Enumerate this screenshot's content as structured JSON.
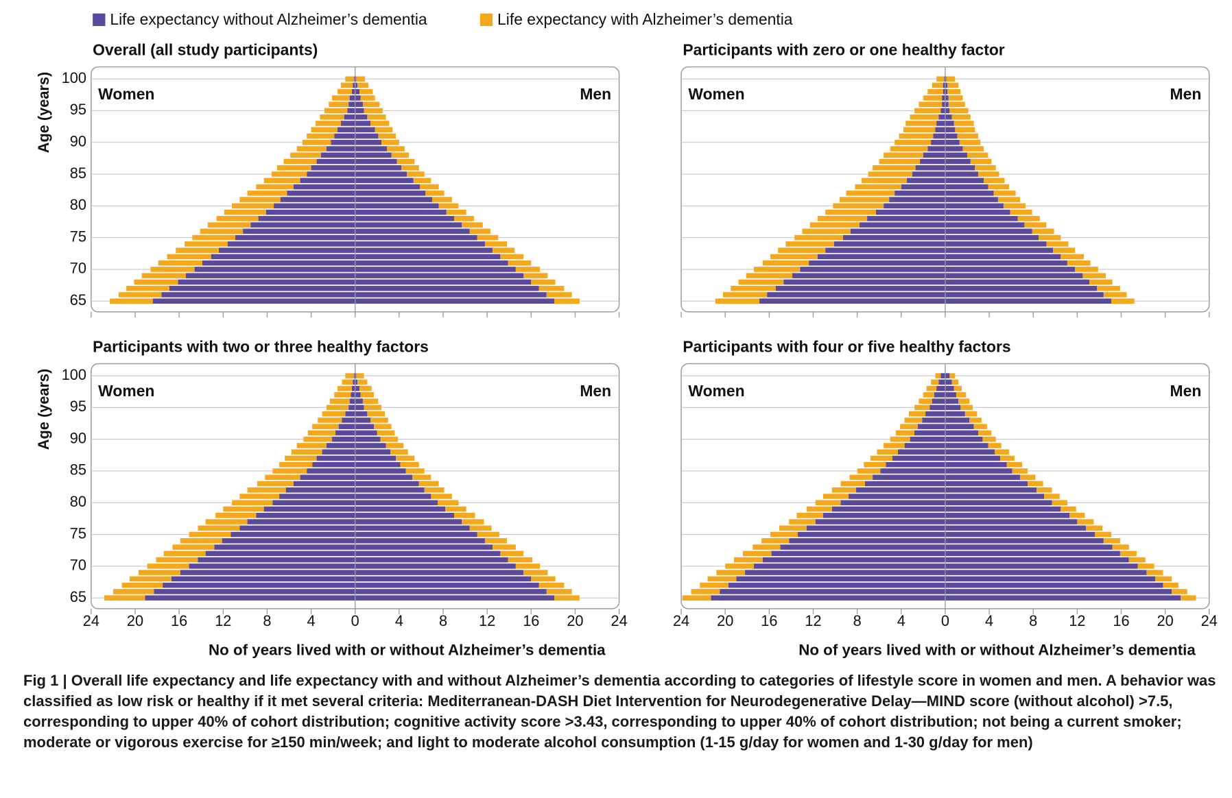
{
  "legend": [
    {
      "name": "Life expectancy without Alzheimer’s dementia",
      "color": "#5b4a9b"
    },
    {
      "name": "Life expectancy with Alzheimer’s dementia",
      "color": "#f5a81c"
    }
  ],
  "chart_data": [
    {
      "type": "pyramid",
      "title": "Overall (all study participants)",
      "left_label": "Women",
      "right_label": "Men",
      "y_label": "Age (years)",
      "ytick_labels": true,
      "y": [
        65,
        66,
        67,
        68,
        69,
        70,
        71,
        72,
        73,
        74,
        75,
        76,
        77,
        78,
        79,
        80,
        81,
        82,
        83,
        84,
        85,
        86,
        87,
        88,
        89,
        90,
        91,
        92,
        93,
        94,
        95,
        96,
        97,
        98,
        99,
        100
      ],
      "ylim": [
        63.3,
        101.9
      ],
      "yticks": [
        65,
        70,
        75,
        80,
        85,
        90,
        95,
        100
      ],
      "xlim": [
        -24,
        24
      ],
      "xticks": [
        -24,
        -20,
        -16,
        -12,
        -8,
        -4,
        0,
        4,
        8,
        12,
        16,
        20,
        24
      ],
      "women_without": [
        18.4,
        17.6,
        16.9,
        16.1,
        15.4,
        14.6,
        13.9,
        13.1,
        12.4,
        11.6,
        10.9,
        10.2,
        9.5,
        8.8,
        8.1,
        7.4,
        6.8,
        6.2,
        5.6,
        5.0,
        4.4,
        4.0,
        3.5,
        3.1,
        2.6,
        2.2,
        1.9,
        1.6,
        1.3,
        1.0,
        0.7,
        0.6,
        0.5,
        0.3,
        0.2,
        0.1
      ],
      "women_with": [
        3.9,
        3.9,
        3.9,
        4.0,
        4.0,
        4.0,
        4.0,
        4.0,
        3.9,
        3.9,
        3.9,
        3.9,
        3.9,
        3.8,
        3.8,
        3.8,
        3.7,
        3.6,
        3.4,
        3.3,
        3.2,
        3.1,
        3.0,
        2.8,
        2.7,
        2.6,
        2.5,
        2.4,
        2.3,
        2.2,
        2.1,
        1.8,
        1.6,
        1.3,
        1.1,
        0.8
      ],
      "men_without": [
        18.1,
        17.4,
        16.7,
        16.0,
        15.3,
        14.6,
        13.9,
        13.2,
        12.5,
        11.8,
        11.1,
        10.4,
        9.7,
        9.0,
        8.3,
        7.6,
        7.0,
        6.4,
        5.9,
        5.3,
        4.7,
        4.2,
        3.8,
        3.3,
        2.9,
        2.4,
        2.1,
        1.8,
        1.4,
        1.1,
        0.8,
        0.7,
        0.5,
        0.4,
        0.2,
        0.1
      ],
      "men_with": [
        2.3,
        2.3,
        2.3,
        2.2,
        2.2,
        2.2,
        2.1,
        2.1,
        2.0,
        2.0,
        1.9,
        1.9,
        1.9,
        1.8,
        1.8,
        1.8,
        1.8,
        1.7,
        1.7,
        1.6,
        1.6,
        1.6,
        1.6,
        1.6,
        1.6,
        1.6,
        1.6,
        1.6,
        1.7,
        1.7,
        1.7,
        1.5,
        1.3,
        1.2,
        1.0,
        0.8
      ]
    },
    {
      "type": "pyramid",
      "title": "Participants with zero or one healthy factor",
      "left_label": "Women",
      "right_label": "Men",
      "ytick_labels": false,
      "y": [
        65,
        66,
        67,
        68,
        69,
        70,
        71,
        72,
        73,
        74,
        75,
        76,
        77,
        78,
        79,
        80,
        81,
        82,
        83,
        84,
        85,
        86,
        87,
        88,
        89,
        90,
        91,
        92,
        93,
        94,
        95,
        96,
        97,
        98,
        99,
        100
      ],
      "ylim": [
        63.3,
        101.9
      ],
      "yticks": [
        65,
        70,
        75,
        80,
        85,
        90,
        95,
        100
      ],
      "xlim": [
        -24,
        24
      ],
      "xticks": [
        -24,
        -20,
        -16,
        -12,
        -8,
        -4,
        0,
        4,
        8,
        12,
        16,
        20,
        24
      ],
      "women_without": [
        16.9,
        16.2,
        15.4,
        14.7,
        13.9,
        13.2,
        12.4,
        11.6,
        10.9,
        10.1,
        9.3,
        8.6,
        7.8,
        7.1,
        6.3,
        5.6,
        5.1,
        4.6,
        4.0,
        3.5,
        3.0,
        2.7,
        2.3,
        2.0,
        1.6,
        1.3,
        1.1,
        0.9,
        0.8,
        0.6,
        0.4,
        0.3,
        0.3,
        0.2,
        0.2,
        0.1
      ],
      "women_with": [
        4.0,
        4.0,
        4.1,
        4.1,
        4.2,
        4.2,
        4.2,
        4.3,
        4.3,
        4.4,
        4.4,
        4.4,
        4.5,
        4.5,
        4.6,
        4.6,
        4.5,
        4.4,
        4.2,
        4.1,
        4.0,
        3.9,
        3.7,
        3.6,
        3.4,
        3.3,
        3.1,
        2.9,
        2.8,
        2.6,
        2.4,
        2.1,
        1.7,
        1.4,
        1.0,
        0.7
      ],
      "men_without": [
        15.1,
        14.4,
        13.8,
        13.1,
        12.5,
        11.8,
        11.1,
        10.5,
        9.8,
        9.2,
        8.5,
        7.9,
        7.2,
        6.6,
        5.9,
        5.3,
        4.8,
        4.4,
        3.9,
        3.5,
        3.0,
        2.7,
        2.3,
        2.0,
        1.6,
        1.3,
        1.1,
        0.9,
        0.8,
        0.6,
        0.4,
        0.3,
        0.3,
        0.2,
        0.2,
        0.1
      ],
      "men_with": [
        2.1,
        2.1,
        2.1,
        2.1,
        2.1,
        2.1,
        2.1,
        2.1,
        2.0,
        2.0,
        2.0,
        2.0,
        2.0,
        2.0,
        2.0,
        2.0,
        2.0,
        2.0,
        1.9,
        1.9,
        1.9,
        1.9,
        1.9,
        1.9,
        1.9,
        1.9,
        1.9,
        1.8,
        1.8,
        1.7,
        1.7,
        1.5,
        1.3,
        1.2,
        1.0,
        0.8
      ]
    },
    {
      "type": "pyramid",
      "title": "Participants with two or three healthy factors",
      "left_label": "Women",
      "right_label": "Men",
      "y_label": "Age (years)",
      "ytick_labels": true,
      "x_label": "No of years lived with or without Alzheimer’s dementia",
      "y": [
        65,
        66,
        67,
        68,
        69,
        70,
        71,
        72,
        73,
        74,
        75,
        76,
        77,
        78,
        79,
        80,
        81,
        82,
        83,
        84,
        85,
        86,
        87,
        88,
        89,
        90,
        91,
        92,
        93,
        94,
        95,
        96,
        97,
        98,
        99,
        100
      ],
      "ylim": [
        63.3,
        101.9
      ],
      "yticks": [
        65,
        70,
        75,
        80,
        85,
        90,
        95,
        100
      ],
      "xlim": [
        -24,
        24
      ],
      "xticks": [
        {
          "value": -24,
          "label": "24"
        },
        {
          "value": -20,
          "label": "20"
        },
        {
          "value": -16,
          "label": "16"
        },
        {
          "value": -12,
          "label": "12"
        },
        {
          "value": -8,
          "label": "8"
        },
        {
          "value": -4,
          "label": "4"
        },
        0,
        4,
        8,
        12,
        16,
        20,
        24
      ],
      "women_without": [
        19.1,
        18.3,
        17.5,
        16.7,
        15.9,
        15.1,
        14.3,
        13.6,
        12.8,
        12.1,
        11.3,
        10.5,
        9.8,
        9.0,
        8.3,
        7.5,
        6.9,
        6.3,
        5.6,
        5.0,
        4.4,
        3.9,
        3.5,
        3.0,
        2.6,
        2.1,
        1.8,
        1.5,
        1.2,
        0.9,
        0.6,
        0.5,
        0.4,
        0.3,
        0.2,
        0.1
      ],
      "women_with": [
        3.7,
        3.7,
        3.7,
        3.8,
        3.8,
        3.8,
        3.8,
        3.8,
        3.8,
        3.8,
        3.8,
        3.8,
        3.8,
        3.7,
        3.7,
        3.7,
        3.6,
        3.5,
        3.3,
        3.2,
        3.1,
        3.0,
        2.9,
        2.8,
        2.7,
        2.6,
        2.5,
        2.4,
        2.2,
        2.1,
        2.0,
        1.8,
        1.5,
        1.3,
        1.0,
        0.8
      ],
      "men_without": [
        18.1,
        17.4,
        16.7,
        16.0,
        15.3,
        14.6,
        13.9,
        13.2,
        12.5,
        11.8,
        11.1,
        10.4,
        9.7,
        9.0,
        8.2,
        7.5,
        6.9,
        6.3,
        5.8,
        5.2,
        4.6,
        4.1,
        3.7,
        3.2,
        2.8,
        2.3,
        2.0,
        1.7,
        1.4,
        1.1,
        0.8,
        0.7,
        0.5,
        0.4,
        0.2,
        0.1
      ],
      "men_with": [
        2.3,
        2.3,
        2.3,
        2.2,
        2.2,
        2.2,
        2.2,
        2.1,
        2.1,
        2.0,
        2.0,
        2.0,
        2.0,
        1.9,
        1.9,
        1.9,
        1.9,
        1.8,
        1.8,
        1.7,
        1.7,
        1.7,
        1.7,
        1.6,
        1.6,
        1.6,
        1.6,
        1.6,
        1.6,
        1.6,
        1.6,
        1.4,
        1.2,
        1.1,
        0.9,
        0.7
      ]
    },
    {
      "type": "pyramid",
      "title": "Participants with four or five healthy factors",
      "left_label": "Women",
      "right_label": "Men",
      "ytick_labels": false,
      "x_label": "No of years lived with or without Alzheimer’s dementia",
      "y": [
        65,
        66,
        67,
        68,
        69,
        70,
        71,
        72,
        73,
        74,
        75,
        76,
        77,
        78,
        79,
        80,
        81,
        82,
        83,
        84,
        85,
        86,
        87,
        88,
        89,
        90,
        91,
        92,
        93,
        94,
        95,
        96,
        97,
        98,
        99,
        100
      ],
      "ylim": [
        63.3,
        101.9
      ],
      "yticks": [
        65,
        70,
        75,
        80,
        85,
        90,
        95,
        100
      ],
      "xlim": [
        -24,
        24
      ],
      "xticks": [
        {
          "value": -24,
          "label": "24"
        },
        {
          "value": -20,
          "label": "20"
        },
        {
          "value": -16,
          "label": "16"
        },
        {
          "value": -12,
          "label": "12"
        },
        {
          "value": -8,
          "label": "8"
        },
        {
          "value": -4,
          "label": "4"
        },
        0,
        4,
        8,
        12,
        16,
        20,
        24
      ],
      "women_without": [
        21.3,
        20.5,
        19.7,
        19.0,
        18.2,
        17.4,
        16.6,
        15.8,
        15.0,
        14.2,
        13.4,
        12.6,
        11.8,
        11.1,
        10.3,
        9.5,
        8.8,
        8.1,
        7.3,
        6.6,
        5.9,
        5.4,
        4.8,
        4.3,
        3.7,
        3.2,
        2.8,
        2.5,
        2.1,
        1.8,
        1.4,
        1.2,
        1.0,
        0.8,
        0.6,
        0.4
      ],
      "women_with": [
        2.6,
        2.6,
        2.6,
        2.6,
        2.6,
        2.6,
        2.6,
        2.6,
        2.5,
        2.5,
        2.5,
        2.5,
        2.4,
        2.4,
        2.3,
        2.3,
        2.3,
        2.2,
        2.2,
        2.1,
        2.1,
        2.0,
        2.0,
        1.9,
        1.9,
        1.8,
        1.7,
        1.6,
        1.6,
        1.5,
        1.4,
        1.2,
        1.0,
        0.9,
        0.7,
        0.5
      ],
      "men_without": [
        21.4,
        20.6,
        19.8,
        19.1,
        18.3,
        17.5,
        16.7,
        15.9,
        15.2,
        14.4,
        13.6,
        12.8,
        12.0,
        11.3,
        10.5,
        9.7,
        9.0,
        8.3,
        7.5,
        6.8,
        6.1,
        5.6,
        5.0,
        4.5,
        3.9,
        3.4,
        3.0,
        2.6,
        2.2,
        1.8,
        1.4,
        1.2,
        1.0,
        0.8,
        0.6,
        0.4
      ],
      "men_with": [
        1.4,
        1.4,
        1.4,
        1.5,
        1.5,
        1.5,
        1.5,
        1.5,
        1.5,
        1.5,
        1.5,
        1.5,
        1.5,
        1.4,
        1.4,
        1.4,
        1.4,
        1.4,
        1.4,
        1.4,
        1.4,
        1.4,
        1.3,
        1.3,
        1.2,
        1.2,
        1.2,
        1.2,
        1.1,
        1.1,
        1.1,
        1.0,
        0.9,
        0.7,
        0.6,
        0.5
      ]
    }
  ],
  "caption": "Fig 1 | Overall life expectancy and life expectancy with and without Alzheimer’s dementia according to categories of lifestyle score in women and men. A behavior was classified as low risk or healthy if it met several criteria: Mediterranean-DASH Diet Intervention for Neurodegenerative Delay—MIND score (without alcohol) >7.5, corresponding to upper 40% of cohort distribution; cognitive activity score >3.43, corresponding to upper 40% of cohort distribution; not being a current smoker; moderate or vigorous exercise for ≥150 min/week; and light to moderate alcohol consumption (1-15 g/day for women and 1-30 g/day for men)"
}
